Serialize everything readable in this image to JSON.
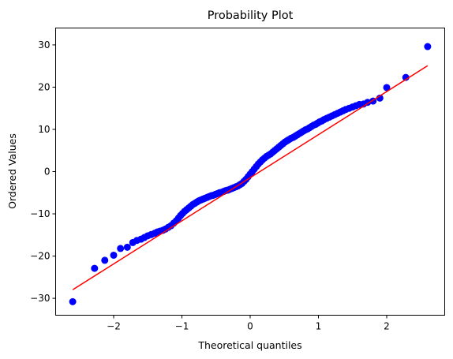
{
  "chart_data": {
    "type": "scatter",
    "title": "Probability Plot",
    "xlabel": "Theoretical quantiles",
    "ylabel": "Ordered Values",
    "xlim": [
      -2.85,
      2.85
    ],
    "ylim": [
      -34,
      34
    ],
    "xticks": [
      -2,
      -1,
      0,
      1,
      2
    ],
    "yticks": [
      -30,
      -20,
      -10,
      0,
      10,
      20,
      30
    ],
    "grid": false,
    "marker_color": "#0000ff",
    "line_color": "#ff0000",
    "fit_line": {
      "slope": 10.2,
      "intercept": -1.45,
      "x_range": [
        -2.6,
        2.6
      ]
    },
    "series": [
      {
        "kind": "points",
        "x": [
          -2.6,
          -2.28,
          -2.13,
          -2.0,
          -1.9,
          -1.8,
          -1.72,
          -1.66,
          -1.6,
          -1.55,
          -1.5,
          -1.45,
          -1.4,
          -1.36,
          -1.32,
          -1.28,
          -1.24,
          -1.2,
          -1.16,
          -1.12,
          -1.08,
          -1.05,
          -1.02,
          -0.99,
          -0.96,
          -0.93,
          -0.9,
          -0.87,
          -0.84,
          -0.81,
          -0.78,
          -0.75,
          -0.72,
          -0.69,
          -0.66,
          -0.63,
          -0.6,
          -0.57,
          -0.54,
          -0.51,
          -0.48,
          -0.45,
          -0.42,
          -0.39,
          -0.36,
          -0.33,
          -0.3,
          -0.27,
          -0.24,
          -0.21,
          -0.18,
          -0.15,
          -0.12,
          -0.09,
          -0.06,
          -0.03,
          0.0,
          0.03,
          0.06,
          0.09,
          0.12,
          0.15,
          0.18,
          0.21,
          0.24,
          0.27,
          0.3,
          0.33,
          0.36,
          0.39,
          0.42,
          0.45,
          0.48,
          0.51,
          0.54,
          0.57,
          0.6,
          0.63,
          0.66,
          0.69,
          0.72,
          0.75,
          0.78,
          0.81,
          0.84,
          0.87,
          0.9,
          0.93,
          0.96,
          0.99,
          1.02,
          1.05,
          1.08,
          1.12,
          1.16,
          1.2,
          1.24,
          1.28,
          1.32,
          1.36,
          1.4,
          1.45,
          1.5,
          1.55,
          1.6,
          1.66,
          1.72,
          1.8,
          1.9,
          2.0,
          2.28,
          2.6
        ],
        "y": [
          -30.8,
          -22.9,
          -21.0,
          -19.8,
          -18.2,
          -17.9,
          -16.8,
          -16.3,
          -16.0,
          -15.6,
          -15.2,
          -14.9,
          -14.6,
          -14.3,
          -14.1,
          -13.9,
          -13.6,
          -13.2,
          -12.8,
          -12.2,
          -11.6,
          -11.0,
          -10.4,
          -9.9,
          -9.4,
          -9.0,
          -8.6,
          -8.2,
          -7.8,
          -7.5,
          -7.2,
          -6.9,
          -6.7,
          -6.5,
          -6.3,
          -6.1,
          -5.9,
          -5.7,
          -5.6,
          -5.4,
          -5.2,
          -5.0,
          -4.9,
          -4.7,
          -4.5,
          -4.4,
          -4.2,
          -4.0,
          -3.8,
          -3.6,
          -3.4,
          -3.1,
          -2.8,
          -2.3,
          -1.8,
          -1.2,
          -0.6,
          0.0,
          0.6,
          1.2,
          1.8,
          2.3,
          2.8,
          3.2,
          3.6,
          3.9,
          4.2,
          4.6,
          5.0,
          5.4,
          5.8,
          6.2,
          6.6,
          7.0,
          7.3,
          7.6,
          7.9,
          8.1,
          8.4,
          8.7,
          9.0,
          9.3,
          9.6,
          9.9,
          10.1,
          10.4,
          10.7,
          11.0,
          11.2,
          11.5,
          11.8,
          12.0,
          12.3,
          12.6,
          12.9,
          13.2,
          13.5,
          13.8,
          14.1,
          14.4,
          14.7,
          15.0,
          15.3,
          15.6,
          15.9,
          16.0,
          16.4,
          16.7,
          17.4,
          19.9,
          22.3,
          29.6
        ]
      }
    ]
  }
}
